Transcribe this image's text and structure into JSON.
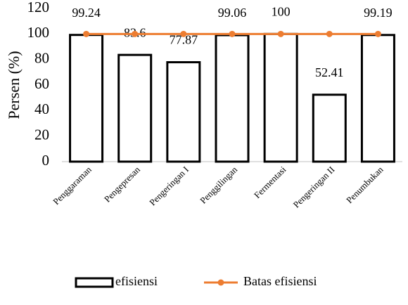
{
  "chart_data": {
    "type": "bar",
    "y_label": "Persen (%)",
    "categories": [
      "Penggaraman",
      "Pengepresan",
      "Pengeringan I",
      "Penggilingan",
      "Fermentasi",
      "Pengeringan II",
      "Penumbukan"
    ],
    "series": [
      {
        "name": "efisiensi",
        "type": "bar",
        "color": "#000000",
        "values": [
          99.24,
          83.6,
          77.87,
          99.06,
          100,
          52.41,
          99.19
        ]
      },
      {
        "name": "Batas efisiensi",
        "type": "line",
        "color": "#ED7D31",
        "values": [
          100,
          100,
          100,
          100,
          100,
          100,
          100
        ]
      }
    ],
    "ylim": [
      0,
      120
    ],
    "yticks": [
      0,
      20,
      40,
      60,
      80,
      100,
      120
    ],
    "grid": false,
    "legend": "bottom"
  }
}
